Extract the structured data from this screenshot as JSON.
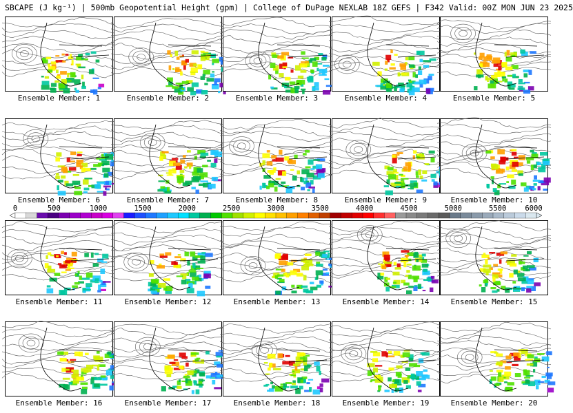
{
  "header": {
    "title": "SBCAPE (J kg⁻¹) | 500mb Geopotential Height (gpm) | College of DuPage NEXLAB 18Z GEFS | F342 Valid: 00Z MON JUN 23 2025"
  },
  "panels": [
    {
      "label": "Ensemble Member: 1"
    },
    {
      "label": "Ensemble Member: 2"
    },
    {
      "label": "Ensemble Member: 3"
    },
    {
      "label": "Ensemble Member: 4"
    },
    {
      "label": "Ensemble Member: 5"
    },
    {
      "label": "Ensemble Member: 6"
    },
    {
      "label": "Ensemble Member: 7"
    },
    {
      "label": "Ensemble Member: 8"
    },
    {
      "label": "Ensemble Member: 9"
    },
    {
      "label": "Ensemble Member: 10"
    },
    {
      "label": "Ensemble Member: 11"
    },
    {
      "label": "Ensemble Member: 12"
    },
    {
      "label": "Ensemble Member: 13"
    },
    {
      "label": "Ensemble Member: 14"
    },
    {
      "label": "Ensemble Member: 15"
    },
    {
      "label": "Ensemble Member: 16"
    },
    {
      "label": "Ensemble Member: 17"
    },
    {
      "label": "Ensemble Member: 18"
    },
    {
      "label": "Ensemble Member: 19"
    },
    {
      "label": "Ensemble Member: 20"
    }
  ],
  "colorbar": {
    "ticks": [
      "0",
      "500",
      "1000",
      "1500",
      "2000",
      "2500",
      "3000",
      "3500",
      "4000",
      "4500",
      "5000",
      "5500",
      "6000"
    ],
    "min": 0,
    "max": 6000,
    "colors": [
      "#ffffff",
      "#d8d8d8",
      "#6a0dad",
      "#4b0082",
      "#7b00b0",
      "#9b00c8",
      "#b000d0",
      "#c800c8",
      "#d800e0",
      "#e040f0",
      "#1a1aff",
      "#1e50ff",
      "#1e78ff",
      "#1ea0ff",
      "#1ec8ff",
      "#00e0ff",
      "#00c8a0",
      "#00b050",
      "#00c800",
      "#50e000",
      "#a0e000",
      "#d0f000",
      "#ffff00",
      "#ffe000",
      "#ffc000",
      "#ffa000",
      "#ff8000",
      "#e06000",
      "#c04000",
      "#a00000",
      "#c00000",
      "#e00000",
      "#ff0000",
      "#ff3030",
      "#ff6060",
      "#9a9a9a",
      "#8a8a8a",
      "#7a7a7a",
      "#6a6a6a",
      "#5a5a5a",
      "#6a7a8a",
      "#7a8a9a",
      "#8a9aaa",
      "#9aaaba",
      "#aabaca",
      "#bacada",
      "#cadaea",
      "#dae8f0"
    ]
  }
}
